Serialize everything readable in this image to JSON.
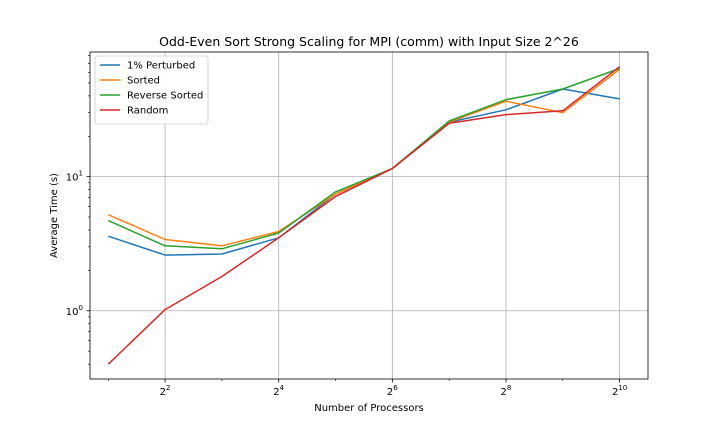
{
  "chart_data": {
    "type": "line",
    "title": "Odd-Even Sort Strong Scaling for MPI (comm) with Input Size 2^26",
    "xlabel": "Number of Processors",
    "ylabel": "Average Time (s)",
    "x_scale": "log2",
    "y_scale": "log10",
    "x": [
      2,
      4,
      8,
      16,
      32,
      64,
      128,
      256,
      512,
      1024
    ],
    "xlim": [
      1.6,
      1448
    ],
    "ylim": [
      0.31,
      85
    ],
    "x_ticks": [
      {
        "value": 4,
        "base": "2",
        "exp": "2"
      },
      {
        "value": 16,
        "base": "2",
        "exp": "4"
      },
      {
        "value": 64,
        "base": "2",
        "exp": "6"
      },
      {
        "value": 256,
        "base": "2",
        "exp": "8"
      },
      {
        "value": 1024,
        "base": "2",
        "exp": "10"
      }
    ],
    "y_ticks": [
      {
        "value": 1,
        "base": "10",
        "exp": "0"
      },
      {
        "value": 10,
        "base": "10",
        "exp": "1"
      }
    ],
    "grid": true,
    "legend_position": "top-left",
    "series": [
      {
        "name": "1% Perturbed",
        "color": "#1f77b4",
        "values": [
          3.6,
          2.6,
          2.65,
          3.5,
          7.4,
          11.5,
          25.5,
          31.5,
          45,
          38
        ]
      },
      {
        "name": "Sorted",
        "color": "#ff7f0e",
        "values": [
          5.2,
          3.4,
          3.05,
          3.9,
          7.4,
          11.5,
          25.5,
          36.5,
          30,
          63
        ]
      },
      {
        "name": "Reverse Sorted",
        "color": "#2ca02c",
        "values": [
          4.7,
          3.05,
          2.9,
          3.8,
          7.7,
          11.5,
          26,
          37.5,
          45,
          64
        ]
      },
      {
        "name": "Random",
        "color": "#d62728",
        "values": [
          0.4,
          1.02,
          1.8,
          3.5,
          7.1,
          11.5,
          25,
          29,
          31,
          66
        ]
      }
    ]
  }
}
